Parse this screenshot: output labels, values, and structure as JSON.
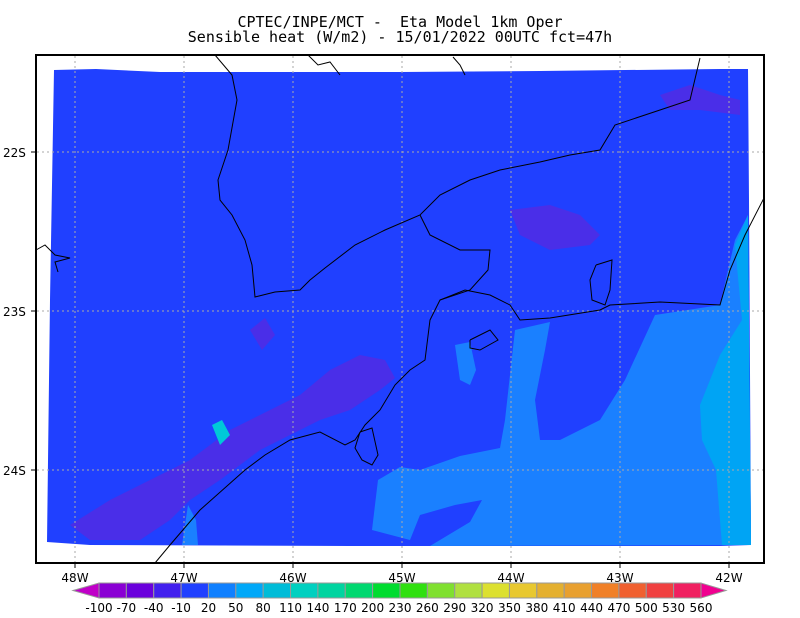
{
  "title": {
    "line1": "CPTEC/INPE/MCT -  Eta Model 1km Oper",
    "line2": "Sensible heat (W/m2) - 15/01/2022 00UTC fct=47h"
  },
  "map": {
    "lon_labels": [
      "48W",
      "47W",
      "46W",
      "45W",
      "44W",
      "43W",
      "42W"
    ],
    "lat_labels": [
      "22S",
      "23S",
      "24S"
    ],
    "field_colors": {
      "base": "#2040ff",
      "low": "#4a2ee8",
      "mid": "#1a80ff",
      "high": "#00a4f4",
      "peak": "#00c8d8"
    }
  },
  "colorbar": {
    "levels": [
      "-100",
      "-70",
      "-40",
      "-10",
      "20",
      "50",
      "80",
      "110",
      "140",
      "170",
      "200",
      "230",
      "260",
      "290",
      "320",
      "350",
      "380",
      "410",
      "440",
      "470",
      "500",
      "530",
      "560"
    ],
    "colors": [
      "#8a00d4",
      "#6a00dc",
      "#4220ee",
      "#2040ff",
      "#1080ff",
      "#00a8f8",
      "#00bcd8",
      "#00d0c0",
      "#00d4a0",
      "#00d870",
      "#00dc30",
      "#30e010",
      "#80e030",
      "#b0e040",
      "#dce030",
      "#e8c830",
      "#e4b030",
      "#e8a030",
      "#f08028",
      "#f06030",
      "#f04040",
      "#f02060"
    ],
    "under_color": "#c000c8",
    "over_color": "#f00090"
  }
}
